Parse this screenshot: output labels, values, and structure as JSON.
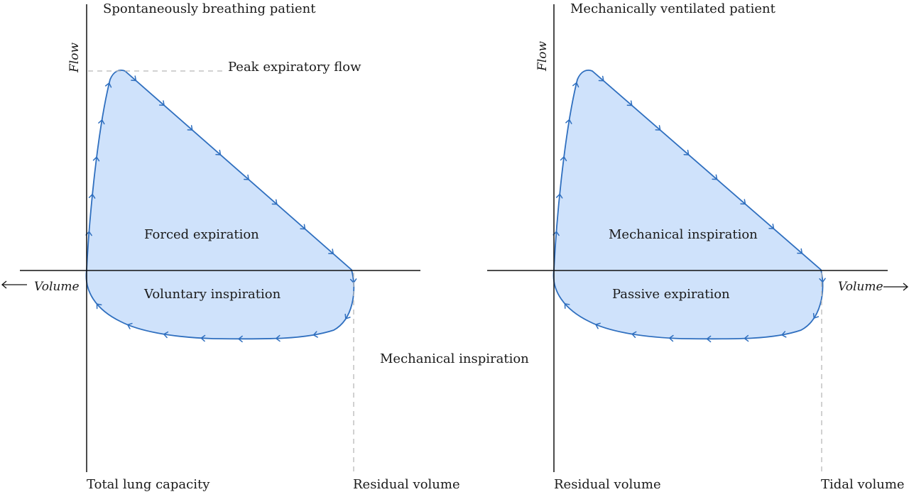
{
  "left_panel": {
    "title": "Spontaneously breathing patient",
    "y_axis_label": "Flow",
    "x_axis_label": "Volume",
    "peak_label": "Peak expiratory flow",
    "upper_region_label": "Forced expiration",
    "lower_region_label": "Voluntary inspiration",
    "x_left_label": "Total lung capacity",
    "x_right_label": "Residual volume"
  },
  "middle_label": "Mechanical inspiration",
  "right_panel": {
    "title": "Mechanically ventilated patient",
    "y_axis_label": "Flow",
    "x_axis_label": "Volume",
    "upper_region_label": "Mechanical inspiration",
    "lower_region_label": "Passive expiration",
    "x_left_label": "Residual volume",
    "x_right_label": "Tidal volume"
  },
  "colors": {
    "loop_fill": "#cfe2fb",
    "loop_stroke": "#2f6fbf",
    "axis": "#111111",
    "guide": "#b8b8b8"
  },
  "icons": [
    "arrow-left-icon",
    "arrow-right-icon",
    "direction-chevron-icon"
  ]
}
